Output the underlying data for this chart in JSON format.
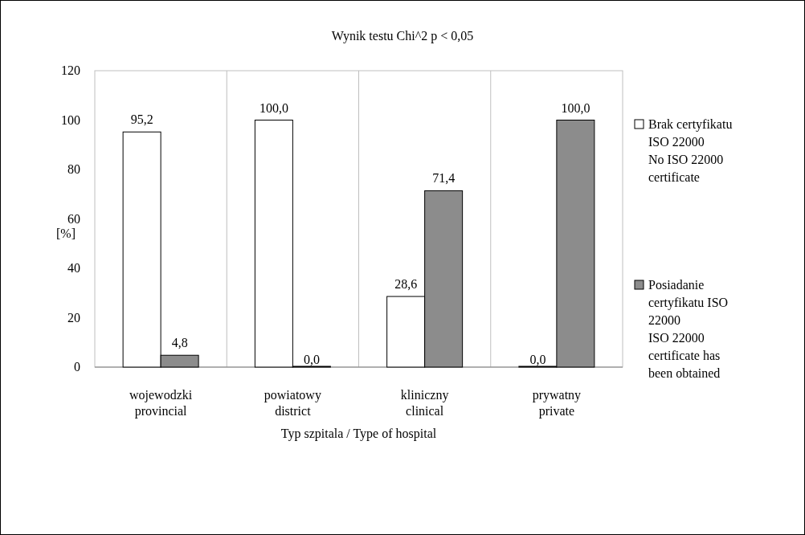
{
  "chart_data": {
    "type": "bar",
    "title": "Wynik testu Chi^2 p < 0,05",
    "xlabel": "Typ szpitala / Type of hospital",
    "ylabel": "[%]",
    "categories": [
      "wojewodzki\nprovincial",
      "powiatowy\ndistrict",
      "kliniczny\nclinical",
      "prywatny\nprivate"
    ],
    "series": [
      {
        "name": "Brak certyfikatu\nISO 22000\nNo ISO 22000\ncertificate",
        "color": "#ffffff",
        "values": [
          95.2,
          100.0,
          28.6,
          0.0
        ],
        "value_labels": [
          "95,2",
          "100,0",
          "28,6",
          "0,0"
        ]
      },
      {
        "name": "Posiadanie\ncertyfikatu ISO\n22000\nISO 22000\ncertificate has\nbeen obtained",
        "color": "#8c8c8c",
        "values": [
          4.8,
          0.0,
          71.4,
          100.0
        ],
        "value_labels": [
          "4,8",
          "0,0",
          "71,4",
          "100,0"
        ]
      }
    ],
    "ylim": [
      0,
      120
    ],
    "yticks": [
      0,
      20,
      40,
      60,
      80,
      100,
      120
    ],
    "grid": "x",
    "legend": "right"
  }
}
